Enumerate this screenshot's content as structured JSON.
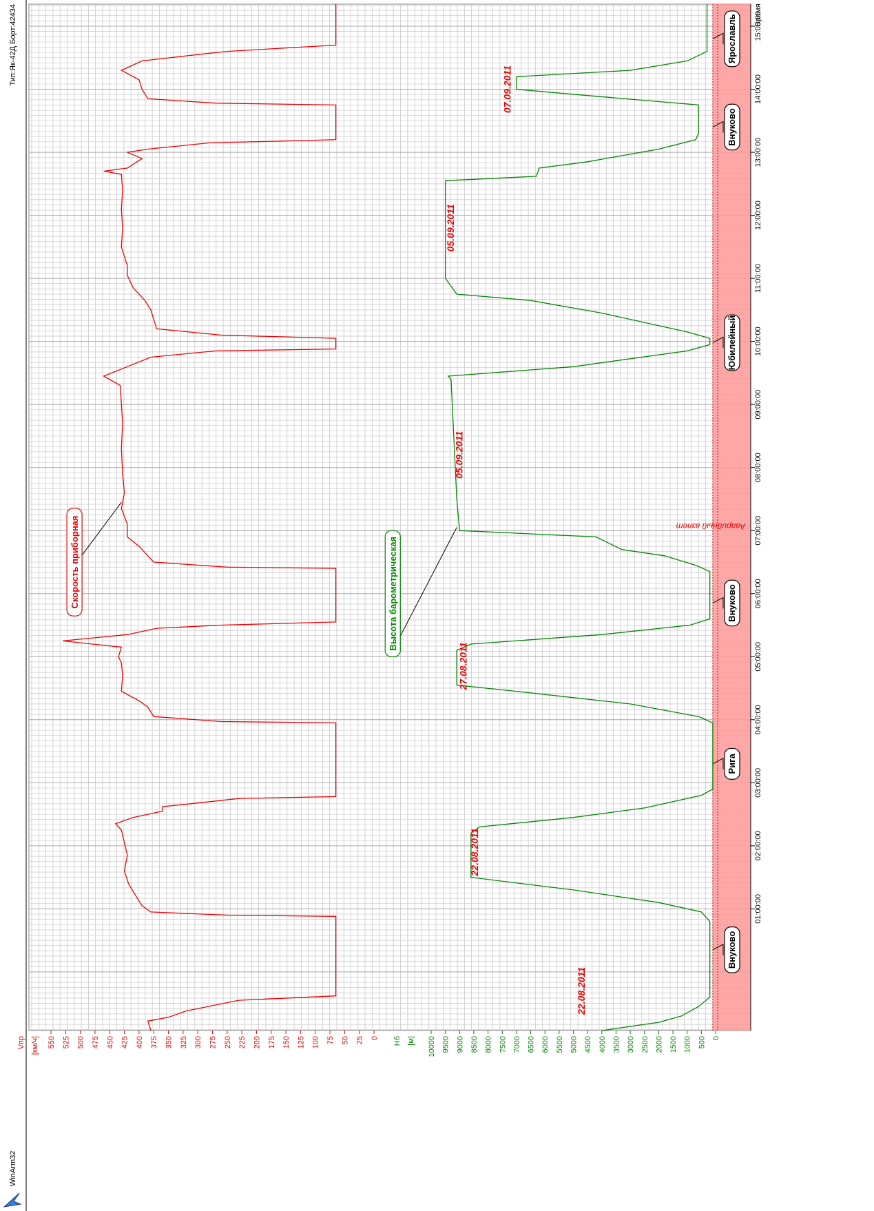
{
  "app": {
    "name": "WinArm32",
    "aircraft": "Тип:Як-42Д Борт:42434",
    "logo_icon": "winarm-logo-icon"
  },
  "emergency_band": {
    "label": "Аварийный взлет",
    "color": "#ff9999"
  },
  "colors": {
    "speed": "#ee0000",
    "altitude": "#008800",
    "grid": "#c8c8c8",
    "label_red": "#ee0000",
    "text": "#000000"
  },
  "chart_data": {
    "type": "line",
    "time_axis": {
      "title": "Время",
      "ticks": [
        "01:00:00",
        "02:00:00",
        "03:00:00",
        "04:00:00",
        "05:00:00",
        "06:00:00",
        "07:00:00",
        "08:00:00",
        "09:00:00",
        "10:00:00",
        "11:00:00",
        "12:00:00",
        "13:00:00",
        "14:00:00",
        "15:00:00"
      ],
      "range_hours": [
        -0.93,
        15.35
      ]
    },
    "speed_axis": {
      "label_top": "Vпр",
      "unit": "[км/ч]",
      "ticks": [
        550,
        525,
        500,
        475,
        450,
        425,
        400,
        375,
        350,
        325,
        300,
        275,
        250,
        225,
        200,
        175,
        150,
        125,
        100,
        75,
        50,
        25,
        0
      ],
      "range": [
        0,
        570
      ]
    },
    "altitude_axis": {
      "label_top": "Нб",
      "unit": "[м]",
      "ticks": [
        10000,
        9500,
        9000,
        8500,
        8000,
        7500,
        7000,
        6500,
        6000,
        5500,
        5000,
        4500,
        4000,
        3500,
        3000,
        2500,
        2000,
        1500,
        1000,
        500,
        0
      ],
      "range": [
        -200,
        10800
      ]
    },
    "series": [
      {
        "name": "Скорость приборная",
        "color": "#ee0000",
        "points": [
          [
            -0.93,
            380
          ],
          [
            -0.78,
            385
          ],
          [
            -0.72,
            350
          ],
          [
            -0.62,
            320
          ],
          [
            -0.45,
            230
          ],
          [
            -0.38,
            65
          ],
          [
            0.88,
            65
          ],
          [
            0.9,
            250
          ],
          [
            0.95,
            380
          ],
          [
            1.05,
            395
          ],
          [
            1.2,
            405
          ],
          [
            1.4,
            418
          ],
          [
            1.6,
            425
          ],
          [
            1.85,
            420
          ],
          [
            2.05,
            425
          ],
          [
            2.25,
            430
          ],
          [
            2.35,
            440
          ],
          [
            2.45,
            410
          ],
          [
            2.55,
            360
          ],
          [
            2.62,
            360
          ],
          [
            2.7,
            280
          ],
          [
            2.75,
            230
          ],
          [
            2.78,
            65
          ],
          [
            3.95,
            65
          ],
          [
            3.97,
            260
          ],
          [
            4.05,
            375
          ],
          [
            4.2,
            385
          ],
          [
            4.3,
            400
          ],
          [
            4.45,
            430
          ],
          [
            4.7,
            428
          ],
          [
            4.9,
            430
          ],
          [
            5.0,
            435
          ],
          [
            5.15,
            430
          ],
          [
            5.25,
            530
          ],
          [
            5.35,
            420
          ],
          [
            5.45,
            370
          ],
          [
            5.5,
            260
          ],
          [
            5.55,
            65
          ],
          [
            6.4,
            65
          ],
          [
            6.42,
            250
          ],
          [
            6.5,
            375
          ],
          [
            6.6,
            385
          ],
          [
            6.75,
            400
          ],
          [
            6.9,
            420
          ],
          [
            7.1,
            420
          ],
          [
            7.35,
            430
          ],
          [
            7.6,
            425
          ],
          [
            7.9,
            428
          ],
          [
            8.3,
            430
          ],
          [
            8.7,
            428
          ],
          [
            9.0,
            430
          ],
          [
            9.3,
            432
          ],
          [
            9.45,
            460
          ],
          [
            9.6,
            420
          ],
          [
            9.75,
            380
          ],
          [
            9.85,
            270
          ],
          [
            9.88,
            65
          ],
          [
            10.05,
            65
          ],
          [
            10.1,
            260
          ],
          [
            10.2,
            370
          ],
          [
            10.35,
            375
          ],
          [
            10.5,
            380
          ],
          [
            10.65,
            390
          ],
          [
            10.85,
            410
          ],
          [
            11.05,
            420
          ],
          [
            11.2,
            420
          ],
          [
            11.5,
            430
          ],
          [
            11.8,
            428
          ],
          [
            12.1,
            430
          ],
          [
            12.4,
            428
          ],
          [
            12.65,
            430
          ],
          [
            12.7,
            460
          ],
          [
            12.75,
            420
          ],
          [
            12.9,
            395
          ],
          [
            13.0,
            420
          ],
          [
            13.05,
            385
          ],
          [
            13.15,
            280
          ],
          [
            13.2,
            65
          ],
          [
            13.75,
            65
          ],
          [
            13.78,
            270
          ],
          [
            13.85,
            385
          ],
          [
            14.0,
            395
          ],
          [
            14.15,
            400
          ],
          [
            14.3,
            430
          ],
          [
            14.45,
            395
          ],
          [
            14.55,
            300
          ],
          [
            14.6,
            250
          ],
          [
            14.7,
            65
          ],
          [
            15.35,
            65
          ]
        ]
      },
      {
        "name": "Высота барометрическая",
        "color": "#008800",
        "points": [
          [
            -0.93,
            4000
          ],
          [
            -0.8,
            2000
          ],
          [
            -0.7,
            1200
          ],
          [
            -0.55,
            600
          ],
          [
            -0.4,
            200
          ],
          [
            0.0,
            200
          ],
          [
            0.8,
            200
          ],
          [
            0.95,
            500
          ],
          [
            1.1,
            2000
          ],
          [
            1.3,
            5000
          ],
          [
            1.5,
            8600
          ],
          [
            2.2,
            8600
          ],
          [
            2.3,
            8300
          ],
          [
            2.45,
            5000
          ],
          [
            2.6,
            2500
          ],
          [
            2.8,
            500
          ],
          [
            2.9,
            100
          ],
          [
            3.95,
            100
          ],
          [
            4.05,
            600
          ],
          [
            4.25,
            3000
          ],
          [
            4.45,
            7000
          ],
          [
            4.55,
            9100
          ],
          [
            5.1,
            9100
          ],
          [
            5.2,
            8600
          ],
          [
            5.35,
            4000
          ],
          [
            5.5,
            900
          ],
          [
            5.6,
            200
          ],
          [
            6.35,
            200
          ],
          [
            6.45,
            700
          ],
          [
            6.6,
            1800
          ],
          [
            6.7,
            3300
          ],
          [
            6.9,
            4200
          ],
          [
            7.0,
            9000
          ],
          [
            7.5,
            9100
          ],
          [
            9.4,
            9300
          ],
          [
            9.45,
            9400
          ],
          [
            9.6,
            5000
          ],
          [
            9.85,
            1000
          ],
          [
            9.95,
            200
          ],
          [
            10.05,
            200
          ],
          [
            10.15,
            1000
          ],
          [
            10.45,
            4000
          ],
          [
            10.65,
            6500
          ],
          [
            10.75,
            9100
          ],
          [
            11.0,
            9500
          ],
          [
            12.55,
            9500
          ],
          [
            12.62,
            6300
          ],
          [
            12.75,
            6200
          ],
          [
            12.85,
            4500
          ],
          [
            13.05,
            2000
          ],
          [
            13.2,
            700
          ],
          [
            13.3,
            600
          ],
          [
            13.75,
            600
          ],
          [
            13.9,
            4500
          ],
          [
            14.0,
            7000
          ],
          [
            14.2,
            7000
          ],
          [
            14.3,
            3000
          ],
          [
            14.45,
            1000
          ],
          [
            14.6,
            300
          ],
          [
            15.35,
            300
          ]
        ]
      }
    ],
    "annotations": {
      "airports": [
        {
          "name": "Внуково",
          "t": 0.35
        },
        {
          "name": "Рига",
          "t": 3.3
        },
        {
          "name": "Внуково",
          "t": 5.85
        },
        {
          "name": "Юбилейный",
          "t": 9.98
        },
        {
          "name": "Внуково",
          "t": 13.4
        },
        {
          "name": "Ярославль",
          "t": 14.8
        }
      ],
      "dates": [
        {
          "text": "22.08.2011",
          "t": -0.3,
          "h": 4600
        },
        {
          "text": "22.08.2011",
          "t": 1.9,
          "h": 8350
        },
        {
          "text": "27.08.2011",
          "t": 4.85,
          "h": 8750
        },
        {
          "text": "05.09.2011",
          "t": 8.2,
          "h": 8900
        },
        {
          "text": "05.09.2011",
          "t": 11.8,
          "h": 9200
        },
        {
          "text": "07.09.2011",
          "t": 14.0,
          "h": 7200
        }
      ],
      "series_labels": {
        "speed": {
          "text": "Скорость приборная",
          "t": 6.5,
          "v": 510
        },
        "altitude": {
          "text": "Высота барометрическая",
          "t": 6.0,
          "h": 11350
        }
      }
    }
  }
}
